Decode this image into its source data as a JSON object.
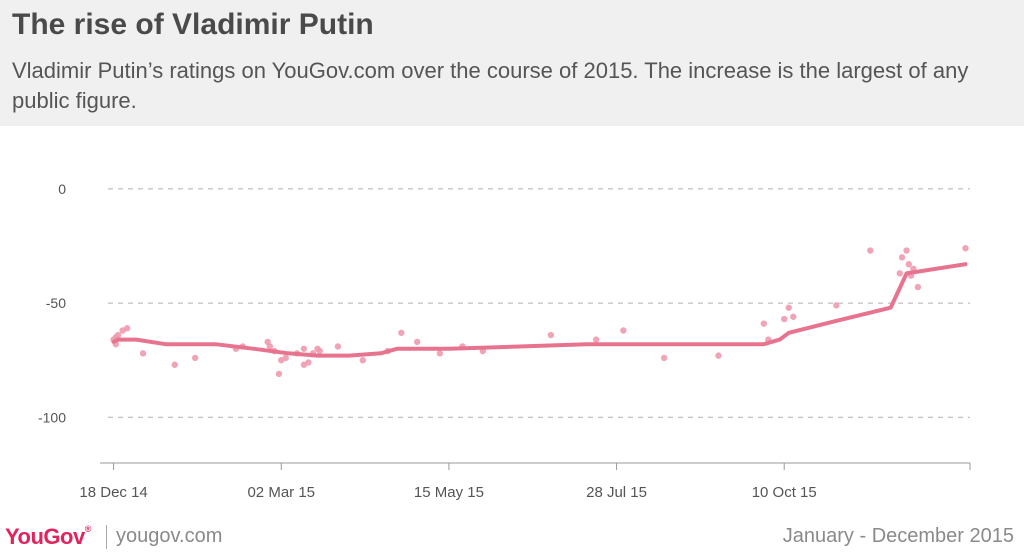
{
  "header": {
    "title": "The rise of Vladimir Putin",
    "subtitle": "Vladimir Putin’s ratings on YouGov.com over the course of 2015. The increase is the largest of any public figure."
  },
  "footer": {
    "logo": "YouGov",
    "logo_mark": "®",
    "site": "yougov.com",
    "period": "January - December 2015"
  },
  "colors": {
    "line": "#e8738f",
    "points": "#ee9aae",
    "grid": "#b0b0b0",
    "axis_text": "#555555",
    "brand": "#e0245e"
  },
  "chart_data": {
    "type": "line",
    "x_is_date": true,
    "xlim": [
      "2014-12-12",
      "2015-12-31"
    ],
    "ylim": [
      -120,
      10
    ],
    "y_ticks": [
      0,
      -50,
      -100
    ],
    "y_tick_labels": [
      "0",
      "-50",
      "-100"
    ],
    "grid": true,
    "x_ticks": [
      "2014-12-18",
      "2015-03-02",
      "2015-05-15",
      "2015-07-28",
      "2015-10-10"
    ],
    "x_tick_labels": [
      "18 Dec 14",
      "02 Mar 15",
      "15 May 15",
      "28 Jul 15",
      "10 Oct 15"
    ],
    "series": [
      {
        "kind": "line",
        "points": [
          [
            "2014-12-18",
            -67
          ],
          [
            "2014-12-20",
            -66
          ],
          [
            "2014-12-28",
            -66
          ],
          [
            "2015-01-10",
            -68
          ],
          [
            "2015-02-01",
            -68
          ],
          [
            "2015-02-18",
            -70
          ],
          [
            "2015-03-05",
            -72
          ],
          [
            "2015-03-18",
            -73
          ],
          [
            "2015-04-01",
            -73
          ],
          [
            "2015-04-15",
            -72
          ],
          [
            "2015-04-22",
            -70
          ],
          [
            "2015-05-15",
            -70
          ],
          [
            "2015-06-15",
            -69
          ],
          [
            "2015-07-15",
            -68
          ],
          [
            "2015-08-15",
            -68
          ],
          [
            "2015-09-15",
            -68
          ],
          [
            "2015-10-01",
            -68
          ],
          [
            "2015-10-08",
            -66
          ],
          [
            "2015-10-12",
            -63
          ],
          [
            "2015-11-01",
            -58
          ],
          [
            "2015-11-26",
            -52
          ],
          [
            "2015-12-03",
            -37
          ],
          [
            "2015-12-29",
            -33
          ]
        ]
      },
      {
        "kind": "scatter",
        "points": [
          [
            "2014-12-18",
            -66
          ],
          [
            "2014-12-19",
            -68
          ],
          [
            "2014-12-20",
            -64
          ],
          [
            "2014-12-22",
            -62
          ],
          [
            "2014-12-24",
            -61
          ],
          [
            "2014-12-19",
            -65
          ],
          [
            "2014-12-31",
            -72
          ],
          [
            "2015-01-14",
            -77
          ],
          [
            "2015-01-23",
            -74
          ],
          [
            "2015-02-10",
            -70
          ],
          [
            "2015-02-13",
            -69
          ],
          [
            "2015-02-24",
            -67
          ],
          [
            "2015-02-25",
            -69
          ],
          [
            "2015-02-27",
            -71
          ],
          [
            "2015-03-01",
            -81
          ],
          [
            "2015-03-02",
            -75
          ],
          [
            "2015-03-04",
            -74
          ],
          [
            "2015-03-09",
            -72
          ],
          [
            "2015-03-12",
            -77
          ],
          [
            "2015-03-12",
            -70
          ],
          [
            "2015-03-14",
            -76
          ],
          [
            "2015-03-16",
            -72
          ],
          [
            "2015-03-18",
            -70
          ],
          [
            "2015-03-19",
            -71
          ],
          [
            "2015-03-27",
            -69
          ],
          [
            "2015-04-07",
            -75
          ],
          [
            "2015-04-18",
            -71
          ],
          [
            "2015-04-24",
            -63
          ],
          [
            "2015-05-01",
            -67
          ],
          [
            "2015-05-11",
            -72
          ],
          [
            "2015-05-21",
            -69
          ],
          [
            "2015-05-30",
            -71
          ],
          [
            "2015-06-29",
            -64
          ],
          [
            "2015-07-19",
            -66
          ],
          [
            "2015-07-31",
            -62
          ],
          [
            "2015-08-18",
            -74
          ],
          [
            "2015-09-11",
            -73
          ],
          [
            "2015-10-01",
            -59
          ],
          [
            "2015-10-03",
            -66
          ],
          [
            "2015-10-10",
            -57
          ],
          [
            "2015-10-12",
            -52
          ],
          [
            "2015-10-14",
            -56
          ],
          [
            "2015-11-02",
            -51
          ],
          [
            "2015-11-17",
            -27
          ],
          [
            "2015-11-30",
            -37
          ],
          [
            "2015-12-01",
            -30
          ],
          [
            "2015-12-03",
            -27
          ],
          [
            "2015-12-04",
            -33
          ],
          [
            "2015-12-05",
            -38
          ],
          [
            "2015-12-06",
            -35
          ],
          [
            "2015-12-08",
            -43
          ],
          [
            "2015-12-29",
            -26
          ]
        ]
      }
    ]
  }
}
